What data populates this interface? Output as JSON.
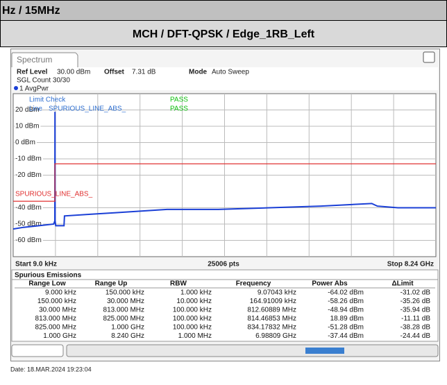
{
  "header": {
    "band": "Hz / 15MHz",
    "config": "MCH / DFT-QPSK / Edge_1RB_Left"
  },
  "instrument": {
    "tab": "Spectrum",
    "ref_level_label": "Ref Level",
    "ref_level": "30.00 dBm",
    "offset_label": "Offset",
    "offset": "7.31 dB",
    "mode_label": "Mode",
    "mode": "Auto Sweep",
    "sgl_count": "SGL Count 30/30",
    "limit_check": "Limit Check",
    "limit_check_result": "PASS",
    "line_label": "Line",
    "line_result": "PASS",
    "start": "Start 9.0 kHz",
    "points": "25006 pts",
    "stop": "Stop 8.24 GHz"
  },
  "chart_data": {
    "type": "line",
    "xlim": [
      9000,
      8240000000
    ],
    "ylim": [
      -70,
      30
    ],
    "yticks": [
      {
        "value": 20,
        "label": "20 dBm"
      },
      {
        "value": 10,
        "label": "10 dBm"
      },
      {
        "value": 0,
        "label": "0 dBm"
      },
      {
        "value": -10,
        "label": "-10 dBm"
      },
      {
        "value": -20,
        "label": "-20 dBm"
      },
      {
        "value": -40,
        "label": "-40 dBm"
      },
      {
        "value": -50,
        "label": "-50 dBm"
      },
      {
        "value": -60,
        "label": "-60 dBm"
      }
    ],
    "grid": true,
    "series": [
      {
        "name": "1 AvgPwr",
        "color": "#1a3fd6",
        "x": [
          9000,
          200000000,
          500000000,
          790000000,
          812000000,
          814500000,
          817000000,
          830000000,
          990000000,
          1000000000,
          1500000000,
          2000000000,
          3000000000,
          4000000000,
          5000000000,
          6000000000,
          6990000000,
          7100000000,
          7500000000,
          8240000000
        ],
        "values": [
          -53,
          -52,
          -51,
          -50,
          -48,
          18.9,
          -48,
          -51,
          -51,
          -45,
          -44,
          -43,
          -41,
          -41,
          -40,
          -39,
          -37.4,
          -39,
          -40,
          -40
        ]
      },
      {
        "name": "SPURIOUS_LINE_ABS_",
        "color": "#e03030",
        "x": [
          9000,
          813000000,
          813000000,
          8240000000
        ],
        "values": [
          -36,
          -36,
          -13,
          -13
        ]
      }
    ]
  },
  "table": {
    "title": "Spurious Emissions",
    "columns": [
      "Range Low",
      "Range Up",
      "RBW",
      "Frequency",
      "Power Abs",
      "ΔLimit"
    ],
    "rows": [
      [
        "9.000 kHz",
        "150.000 kHz",
        "1.000 kHz",
        "9.07043 kHz",
        "-64.02 dBm",
        "-31.02 dB"
      ],
      [
        "150.000 kHz",
        "30.000 MHz",
        "10.000 kHz",
        "164.91009 kHz",
        "-58.26 dBm",
        "-35.26 dB"
      ],
      [
        "30.000 MHz",
        "813.000 MHz",
        "100.000 kHz",
        "812.60889 MHz",
        "-48.94 dBm",
        "-35.94 dB"
      ],
      [
        "813.000 MHz",
        "825.000 MHz",
        "100.000 kHz",
        "814.46853 MHz",
        "18.89 dBm",
        "-11.11 dB"
      ],
      [
        "825.000 MHz",
        "1.000 GHz",
        "100.000 kHz",
        "834.17832 MHz",
        "-51.28 dBm",
        "-38.28 dB"
      ],
      [
        "1.000 GHz",
        "8.240 GHz",
        "1.000 MHz",
        "6.98809 GHz",
        "-37.44 dBm",
        "-24.44 dB"
      ]
    ]
  },
  "footer": {
    "date": "Date: 18.MAR.2024  19:23:04"
  }
}
